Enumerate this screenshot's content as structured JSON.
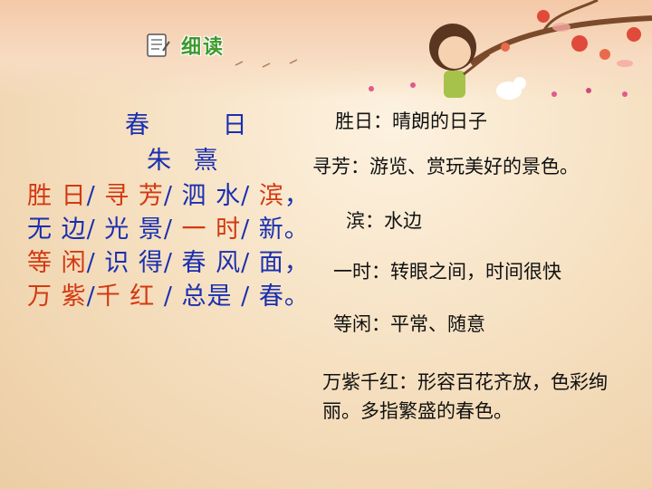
{
  "header": {
    "title": "细读",
    "icon": "notebook-icon"
  },
  "poem": {
    "title": "春 日",
    "author": "朱 熹",
    "lines": [
      [
        {
          "t": "胜 日",
          "c": "r"
        },
        {
          "t": "/ ",
          "c": "b"
        },
        {
          "t": "寻 芳",
          "c": "r"
        },
        {
          "t": "/ 泗 水/ ",
          "c": "b"
        },
        {
          "t": "滨",
          "c": "r"
        },
        {
          "t": "，",
          "c": "b"
        }
      ],
      [
        {
          "t": "无 边/ 光 景/ ",
          "c": "b"
        },
        {
          "t": "一 时",
          "c": "r"
        },
        {
          "t": "/ 新。",
          "c": "b"
        }
      ],
      [
        {
          "t": "等 闲",
          "c": "r"
        },
        {
          "t": "/ 识 得/ 春 风/ 面，",
          "c": "b"
        }
      ],
      [
        {
          "t": "万 紫",
          "c": "r"
        },
        {
          "t": "/",
          "c": "b"
        },
        {
          "t": "千 红",
          "c": "r"
        },
        {
          "t": " / 总是 / 春。",
          "c": "b"
        }
      ]
    ]
  },
  "notes": [
    "胜日：晴朗的日子",
    "寻芳：游览、赏玩美好的景色。",
    "滨：水边",
    "一时：转眼之间，时间很快",
    "等闲：平常、随意",
    "万紫千红：形容百花齐放，色彩绚丽。多指繁盛的春色。"
  ],
  "colors": {
    "red": "#d23a12",
    "blue": "#1a2fb0",
    "green": "#3d9a2c"
  }
}
